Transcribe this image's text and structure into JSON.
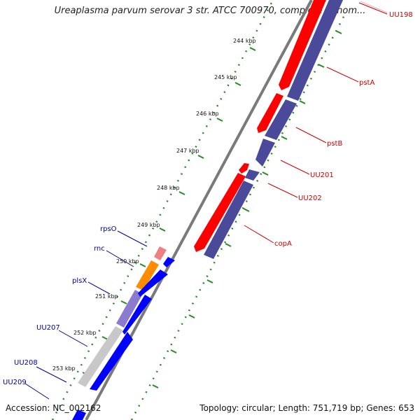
{
  "title": "Ureaplasma parvum serovar 3 str. ATCC 700970, complete genom...",
  "footer": {
    "accession": "Accession: NC_002162",
    "topology": "Topology: circular; Length: 751,719 bp; Genes: 653"
  },
  "colors": {
    "red_gene": "#ff0000",
    "red_label": "#cc0000",
    "purple_gene": "#4b4a9a",
    "blue_gene": "#0000ff",
    "blue_label": "#000099",
    "orange_gene": "#ff8c00",
    "pink_gene": "#f08080",
    "tick": "#228b22",
    "backbone": "#888888"
  },
  "ruler": {
    "unit": "kbp",
    "ticks": [
      "244 kbp",
      "245 kbp",
      "246 kbp",
      "247 kbp",
      "248 kbp",
      "249 kbp",
      "250 kbp",
      "251 kbp",
      "252 kbp",
      "253 kbp"
    ]
  },
  "genes": {
    "right": [
      "UU198",
      "pstA",
      "pstB",
      "UU201",
      "UU202",
      "copA"
    ],
    "left": [
      "rpsO",
      "rnc",
      "plsX",
      "UU207",
      "UU208",
      "UU209"
    ]
  }
}
